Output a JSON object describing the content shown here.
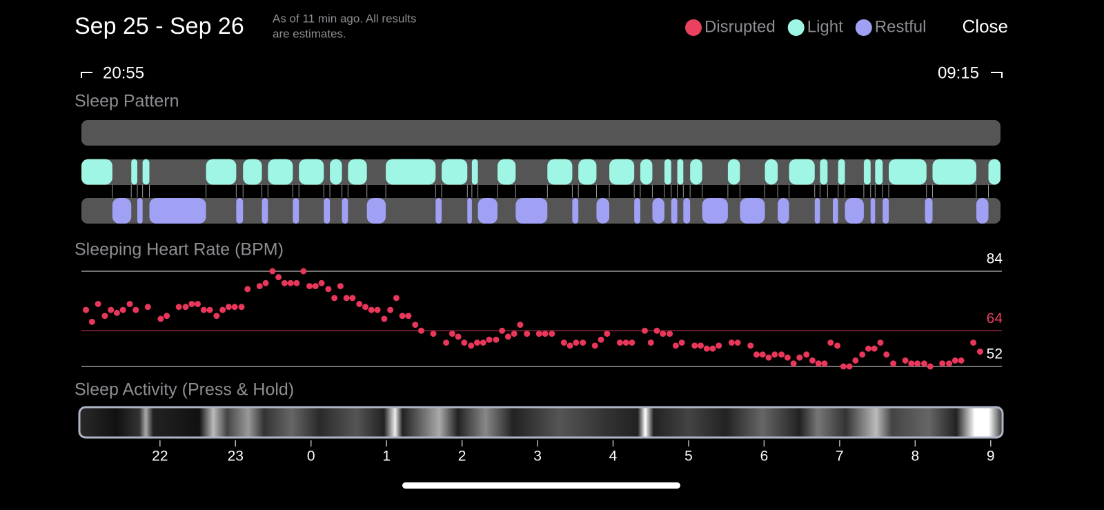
{
  "header": {
    "title": "Sep 25 - Sep 26",
    "note": [
      "As of 11 min ago. All results",
      "are estimates."
    ],
    "close": "Close"
  },
  "chart_data": [
    {
      "type": "timeline",
      "title": "Sleep Pattern",
      "start_label": "20:55",
      "end_label": "09:15",
      "xlim": [
        20.96,
        33.13
      ],
      "legend": "top-right",
      "series": [
        {
          "name": "Disrupted",
          "color": "#e9415f",
          "intervals": []
        },
        {
          "name": "Light",
          "color": "#9ff6e5",
          "intervals": [
            [
              20.96,
              21.37
            ],
            [
              21.62,
              21.7
            ],
            [
              21.77,
              21.86
            ],
            [
              22.61,
              23.01
            ],
            [
              23.1,
              23.35
            ],
            [
              23.43,
              23.76
            ],
            [
              23.84,
              24.17
            ],
            [
              24.25,
              24.41
            ],
            [
              24.49,
              24.74
            ],
            [
              24.99,
              25.65
            ],
            [
              25.73,
              26.07
            ],
            [
              26.13,
              26.21
            ],
            [
              26.47,
              26.71
            ],
            [
              27.13,
              27.46
            ],
            [
              27.54,
              27.78
            ],
            [
              27.95,
              28.28
            ],
            [
              28.36,
              28.52
            ],
            [
              28.68,
              28.77
            ],
            [
              28.85,
              28.93
            ],
            [
              29.02,
              29.18
            ],
            [
              29.52,
              29.68
            ],
            [
              30.01,
              30.18
            ],
            [
              30.33,
              30.67
            ],
            [
              30.74,
              30.84
            ],
            [
              30.98,
              31.07
            ],
            [
              31.32,
              31.41
            ],
            [
              31.47,
              31.57
            ],
            [
              31.65,
              32.15
            ],
            [
              32.23,
              32.81
            ],
            [
              32.97,
              33.13
            ]
          ]
        },
        {
          "name": "Restful",
          "color": "#a0a1f5",
          "intervals": [
            [
              21.37,
              21.62
            ],
            [
              21.7,
              21.77
            ],
            [
              21.86,
              22.61
            ],
            [
              23.01,
              23.1
            ],
            [
              23.35,
              23.43
            ],
            [
              23.76,
              23.84
            ],
            [
              24.17,
              24.25
            ],
            [
              24.41,
              24.49
            ],
            [
              24.74,
              24.99
            ],
            [
              25.65,
              25.73
            ],
            [
              26.07,
              26.13
            ],
            [
              26.21,
              26.47
            ],
            [
              26.71,
              27.13
            ],
            [
              27.46,
              27.54
            ],
            [
              27.78,
              27.95
            ],
            [
              28.28,
              28.36
            ],
            [
              28.52,
              28.68
            ],
            [
              28.77,
              28.85
            ],
            [
              28.93,
              29.02
            ],
            [
              29.18,
              29.52
            ],
            [
              29.68,
              30.01
            ],
            [
              30.18,
              30.33
            ],
            [
              30.67,
              30.74
            ],
            [
              30.91,
              30.98
            ],
            [
              31.07,
              31.32
            ],
            [
              31.41,
              31.47
            ],
            [
              31.57,
              31.65
            ],
            [
              32.13,
              32.23
            ],
            [
              32.81,
              32.97
            ]
          ]
        }
      ]
    },
    {
      "type": "scatter",
      "title": "Sleeping Heart Rate (BPM)",
      "color": "#e8375a",
      "xlim": [
        20.96,
        33.13
      ],
      "ylim": [
        52,
        84
      ],
      "yticks": [
        52,
        64,
        84
      ],
      "tick_colors": [
        "#ffffff",
        "#e8405f",
        "#ffffff"
      ],
      "x": [
        21.02,
        21.1,
        21.18,
        21.27,
        21.35,
        21.43,
        21.51,
        21.6,
        21.68,
        21.84,
        22.01,
        22.09,
        22.25,
        22.34,
        22.42,
        22.5,
        22.58,
        22.66,
        22.75,
        22.83,
        22.91,
        22.99,
        23.08,
        23.16,
        23.32,
        23.4,
        23.49,
        23.57,
        23.65,
        23.73,
        23.81,
        23.9,
        23.98,
        24.06,
        24.14,
        24.23,
        24.31,
        24.39,
        24.47,
        24.55,
        24.64,
        24.72,
        24.8,
        24.88,
        24.97,
        25.05,
        25.13,
        25.21,
        25.29,
        25.38,
        25.46,
        25.62,
        25.79,
        25.87,
        25.95,
        26.03,
        26.12,
        26.2,
        26.28,
        26.36,
        26.45,
        26.53,
        26.61,
        26.69,
        26.77,
        26.86,
        27.02,
        27.1,
        27.19,
        27.35,
        27.43,
        27.51,
        27.6,
        27.76,
        27.84,
        27.92,
        28.09,
        28.17,
        28.25,
        28.42,
        28.5,
        28.58,
        28.66,
        28.75,
        28.83,
        28.91,
        29.08,
        29.16,
        29.24,
        29.32,
        29.4,
        29.57,
        29.65,
        29.82,
        29.9,
        29.98,
        30.06,
        30.14,
        30.23,
        30.31,
        30.39,
        30.47,
        30.56,
        30.64,
        30.72,
        30.8,
        30.88,
        30.97,
        31.05,
        31.13,
        31.21,
        31.3,
        31.38,
        31.46,
        31.54,
        31.62,
        31.71,
        31.87,
        31.95,
        32.03,
        32.12,
        32.2,
        32.36,
        32.45,
        32.53,
        32.61,
        32.77,
        32.86
      ],
      "values": [
        71,
        67,
        73,
        69,
        71,
        70,
        71,
        73,
        71,
        72,
        68,
        69,
        72,
        72,
        73,
        73,
        71,
        71,
        69,
        71,
        72,
        72,
        72,
        78,
        79,
        80,
        84,
        82,
        80,
        80,
        80,
        84,
        79,
        79,
        80,
        78,
        75,
        79,
        75,
        75,
        73,
        72,
        71,
        71,
        68,
        71,
        75,
        69,
        69,
        66,
        64,
        63,
        60,
        63,
        62,
        60,
        59,
        60,
        60,
        61,
        61,
        64,
        62,
        63,
        66,
        63,
        63,
        63,
        63,
        60,
        59,
        60,
        60,
        59,
        61,
        63,
        60,
        60,
        60,
        64,
        60,
        64,
        63,
        63,
        59,
        60,
        59,
        59,
        58,
        58,
        59,
        60,
        60,
        59,
        56,
        56,
        55,
        56,
        56,
        55,
        53,
        55,
        56,
        54,
        53,
        53,
        60,
        59,
        52,
        52,
        54,
        56,
        58,
        58,
        60,
        56,
        53,
        54,
        53,
        53,
        53,
        52,
        53,
        53,
        54,
        54,
        60,
        57
      ]
    },
    {
      "type": "activity",
      "title": "Sleep Activity (Press & Hold)",
      "xlim": [
        20.96,
        33.13
      ],
      "xticks": [
        22,
        23,
        {
          "value": 24,
          "label": "0"
        },
        {
          "value": 25,
          "label": "1"
        },
        {
          "value": 26,
          "label": "2"
        },
        {
          "value": 27,
          "label": "3"
        },
        {
          "value": 28,
          "label": "4"
        },
        {
          "value": 29,
          "label": "5"
        },
        {
          "value": 30,
          "label": "6"
        },
        {
          "value": 31,
          "label": "7"
        },
        {
          "value": 32,
          "label": "8"
        },
        {
          "value": 33,
          "label": "9"
        }
      ]
    }
  ]
}
